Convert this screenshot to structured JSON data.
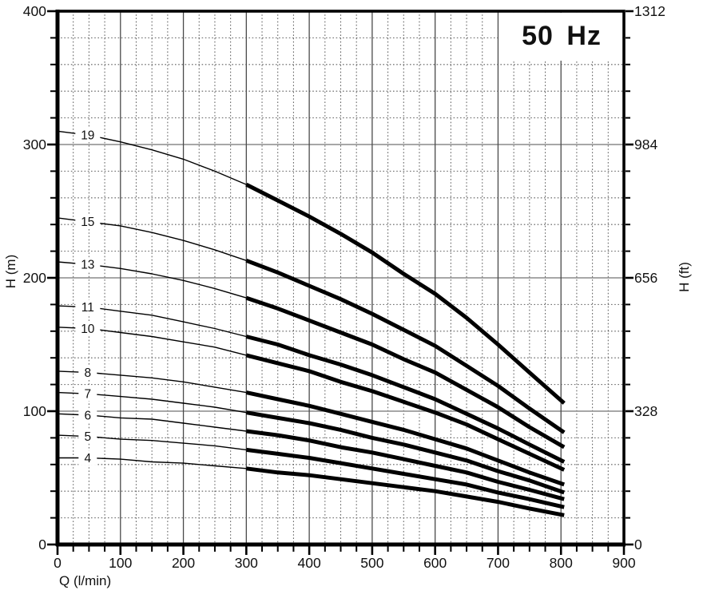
{
  "chart_data": {
    "type": "line",
    "title": "50 Hz",
    "xlabel": "Q (l/min)",
    "ylabel_left": "H (m)",
    "ylabel_right": "H (ft)",
    "x_max": 900,
    "y_left_max": 400,
    "y_right_max": 1312,
    "grid": "major solid every 100 l/min and 100 m, minor dotted every 25 l/min and 20 m",
    "legend_position": "labels on curves at left side",
    "x_major_step": 100,
    "x_minor_step": 25,
    "y_left_major_step": 100,
    "y_left_minor_step": 20,
    "x_tick_labels": [
      "0",
      "100",
      "200",
      "300",
      "400",
      "500",
      "600",
      "700",
      "800",
      "900"
    ],
    "y_left_ticks": [
      {
        "value_m": 400,
        "label": "400"
      },
      {
        "value_m": 300,
        "label": "300"
      },
      {
        "value_m": 200,
        "label": "200"
      },
      {
        "value_m": 100,
        "label": "100"
      },
      {
        "value_m": 0,
        "label": "0"
      }
    ],
    "y_right_ticks": [
      {
        "value_m": 400,
        "label": "1312"
      },
      {
        "value_m": 300,
        "label": "984"
      },
      {
        "value_m": 200,
        "label": "656"
      },
      {
        "value_m": 100,
        "label": "328"
      },
      {
        "value_m": 0,
        "label": "0"
      }
    ],
    "heavy_line_q_range": [
      300,
      805
    ],
    "label_q": 48,
    "q_points": [
      0,
      50,
      100,
      150,
      200,
      250,
      300,
      350,
      400,
      450,
      500,
      550,
      600,
      650,
      700,
      750,
      805
    ],
    "series": [
      {
        "label": "19",
        "stages": 19,
        "head_m": [
          310,
          307,
          302,
          296,
          289,
          280,
          270,
          258,
          246,
          233,
          219,
          203,
          188,
          170,
          150,
          129,
          106
        ]
      },
      {
        "label": "15",
        "stages": 15,
        "head_m": [
          245,
          242,
          239,
          234,
          228,
          221,
          213,
          204,
          194,
          184,
          173,
          161,
          149,
          134,
          119,
          102,
          84
        ]
      },
      {
        "label": "13",
        "stages": 13,
        "head_m": [
          212,
          210,
          207,
          203,
          198,
          192,
          185,
          177,
          168,
          159,
          150,
          139,
          129,
          116,
          103,
          88,
          73
        ]
      },
      {
        "label": "11",
        "stages": 11,
        "head_m": [
          179,
          178,
          175,
          172,
          167,
          162,
          156,
          150,
          142,
          135,
          127,
          118,
          109,
          98,
          87,
          75,
          62
        ]
      },
      {
        "label": "10",
        "stages": 10,
        "head_m": [
          163,
          162,
          159,
          156,
          152,
          148,
          142,
          136,
          130,
          122,
          115,
          107,
          99,
          90,
          79,
          68,
          56
        ]
      },
      {
        "label": "8",
        "stages": 8,
        "head_m": [
          130,
          129,
          127,
          125,
          122,
          118,
          114,
          109,
          104,
          98,
          92,
          86,
          79,
          72,
          63,
          54,
          45
        ]
      },
      {
        "label": "7",
        "stages": 7,
        "head_m": [
          114,
          113,
          111,
          109,
          106,
          103,
          99,
          95,
          91,
          86,
          80,
          75,
          69,
          63,
          55,
          48,
          39
        ]
      },
      {
        "label": "6",
        "stages": 6,
        "head_m": [
          98,
          97,
          95,
          94,
          91,
          88,
          85,
          82,
          78,
          73,
          69,
          64,
          59,
          54,
          47,
          41,
          34
        ]
      },
      {
        "label": "5",
        "stages": 5,
        "head_m": [
          82,
          81,
          79,
          78,
          76,
          74,
          71,
          68,
          65,
          61,
          57,
          53,
          49,
          45,
          39,
          34,
          28
        ]
      },
      {
        "label": "4",
        "stages": 4,
        "head_m": [
          65,
          65,
          64,
          62,
          61,
          59,
          57,
          54,
          52,
          49,
          46,
          43,
          40,
          36,
          32,
          27,
          22
        ]
      }
    ]
  },
  "colors": {
    "background": "#ffffff",
    "curve": "#000000",
    "axis": "#000000",
    "grid_major_v": "#4a4a4a",
    "grid_major_h": "#8a8a8a",
    "grid_minor": "#5f5f5f",
    "text": "#111111"
  }
}
